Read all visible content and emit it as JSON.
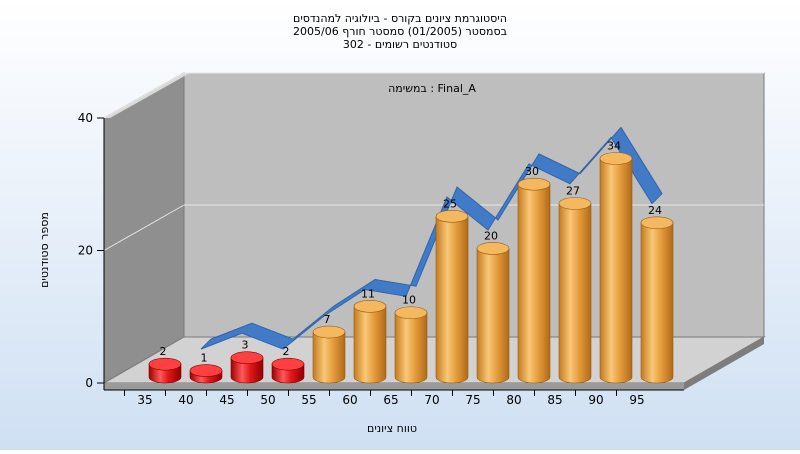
{
  "chart_data": {
    "type": "bar",
    "title_lines": [
      "היסטוגרמת ציונים בקורס - ביולוגיה למהנדסים",
      "בסמסטר  (01/2005)  סמסטר חורף 2005/06",
      "302 - סטודנטים רשומים"
    ],
    "annotation": "במשימה : Final_A",
    "xlabel": "טווח ציונים",
    "ylabel": "מספר סטודנטים",
    "categories": [
      "35",
      "40",
      "45",
      "50",
      "55",
      "60",
      "65",
      "70",
      "75",
      "80",
      "85",
      "90",
      "95"
    ],
    "values": [
      2,
      1,
      3,
      2,
      7,
      11,
      10,
      25,
      20,
      30,
      27,
      34,
      24
    ],
    "y_ticks": [
      "0",
      "20",
      "40"
    ],
    "ylim": [
      0,
      40
    ],
    "fail_threshold_index": 4,
    "colors": {
      "fail_bar": "#e01818",
      "pass_bar": "#e8a040",
      "trend_line": "#3b78c8",
      "back_wall": "#bebebe",
      "side_wall": "#8f8f8f",
      "floor": "#d2d2d2"
    },
    "trend_series": {
      "values": [
        2,
        4.4,
        2,
        7,
        11,
        10,
        25,
        20,
        30,
        27,
        34,
        24
      ]
    },
    "grid": true,
    "legend": "none"
  }
}
